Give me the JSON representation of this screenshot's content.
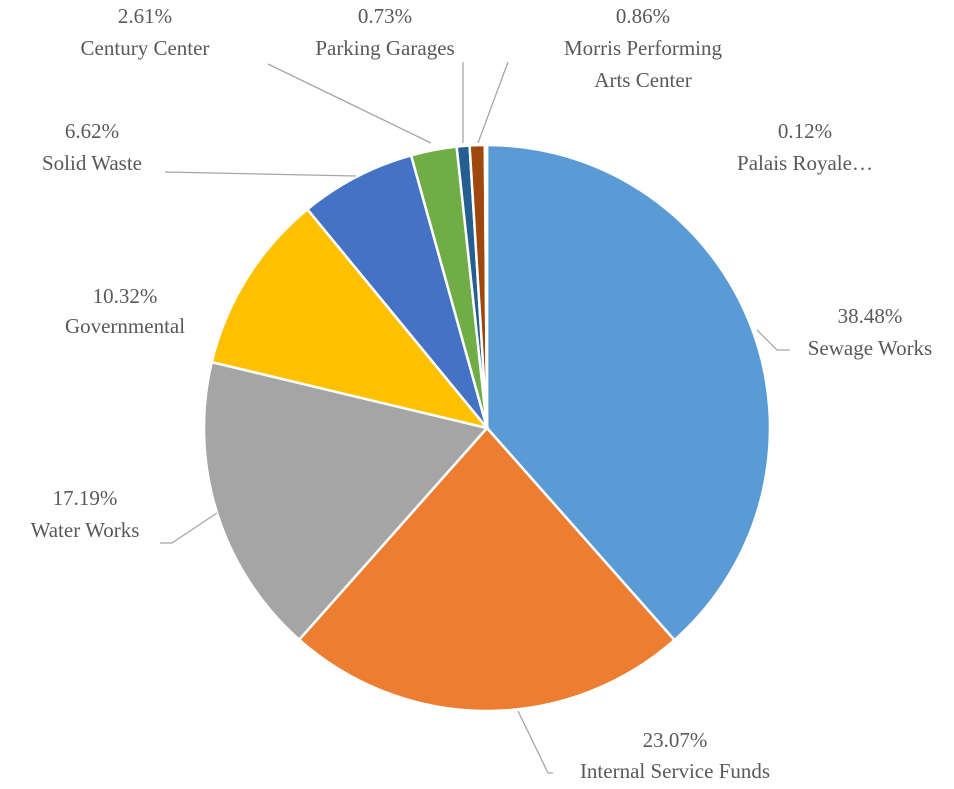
{
  "chart_data": {
    "type": "pie",
    "categories": [
      "Sewage Works",
      "Internal Service Funds",
      "Water Works",
      "Governmental",
      "Solid Waste",
      "Century Center",
      "Parking Garages",
      "Morris Performing Arts Center",
      "Palais Royale…"
    ],
    "values": [
      38.48,
      23.07,
      17.19,
      10.32,
      6.62,
      2.61,
      0.73,
      0.86,
      0.12
    ],
    "value_labels": [
      "38.48%",
      "23.07%",
      "17.19%",
      "10.32%",
      "6.62%",
      "2.61%",
      "0.73%",
      "0.86%",
      "0.12%"
    ],
    "colors": [
      "#5b9bd5",
      "#ed7d31",
      "#a5a5a5",
      "#ffc000",
      "#4472c4",
      "#70ad47",
      "#255e91",
      "#9e480e",
      "#636363"
    ]
  }
}
